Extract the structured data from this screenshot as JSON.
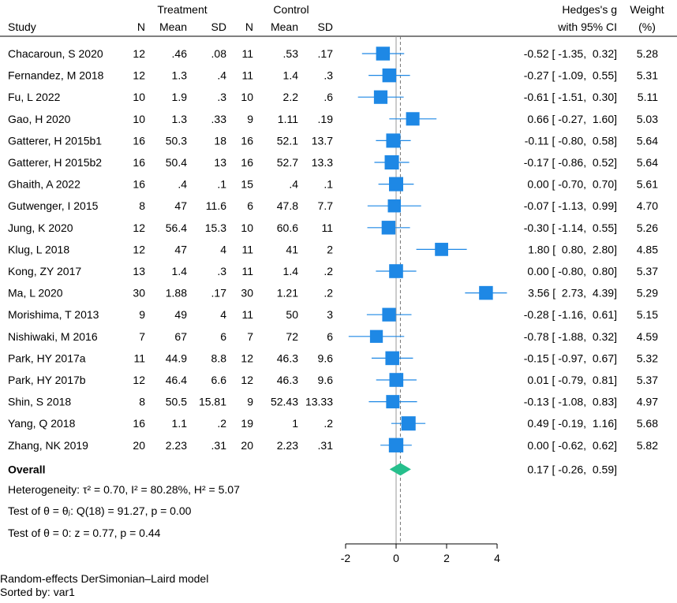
{
  "chart_data": {
    "type": "forest",
    "header": {
      "group_treatment": "Treatment",
      "group_control": "Control",
      "col_study": "Study",
      "col_n": "N",
      "col_mean": "Mean",
      "col_sd": "SD",
      "col_effect_line1": "Hedges's g",
      "col_effect_line2": "with 95% CI",
      "col_weight_line1": "Weight",
      "col_weight_line2": "(%)"
    },
    "studies": [
      {
        "study": "Chacaroun, S 2020",
        "n1": "12",
        "m1": ".46",
        "sd1": ".08",
        "n2": "11",
        "m2": ".53",
        "sd2": ".17",
        "g": -0.52,
        "lo": -1.35,
        "hi": 0.32,
        "ci_text": "-0.52 [ -1.35,  0.32]",
        "weight": "5.28"
      },
      {
        "study": "Fernandez, M 2018",
        "n1": "12",
        "m1": "1.3",
        "sd1": ".4",
        "n2": "11",
        "m2": "1.4",
        "sd2": ".3",
        "g": -0.27,
        "lo": -1.09,
        "hi": 0.55,
        "ci_text": "-0.27 [ -1.09,  0.55]",
        "weight": "5.31"
      },
      {
        "study": "Fu, L 2022",
        "n1": "10",
        "m1": "1.9",
        "sd1": ".3",
        "n2": "10",
        "m2": "2.2",
        "sd2": ".6",
        "g": -0.61,
        "lo": -1.51,
        "hi": 0.3,
        "ci_text": "-0.61 [ -1.51,  0.30]",
        "weight": "5.11"
      },
      {
        "study": "Gao, H 2020",
        "n1": "10",
        "m1": "1.3",
        "sd1": ".33",
        "n2": "9",
        "m2": "1.11",
        "sd2": ".19",
        "g": 0.66,
        "lo": -0.27,
        "hi": 1.6,
        "ci_text": "0.66 [ -0.27,  1.60]",
        "weight": "5.03"
      },
      {
        "study": "Gatterer, H 2015b1",
        "n1": "16",
        "m1": "50.3",
        "sd1": "18",
        "n2": "16",
        "m2": "52.1",
        "sd2": "13.7",
        "g": -0.11,
        "lo": -0.8,
        "hi": 0.58,
        "ci_text": "-0.11 [ -0.80,  0.58]",
        "weight": "5.64"
      },
      {
        "study": "Gatterer, H 2015b2",
        "n1": "16",
        "m1": "50.4",
        "sd1": "13",
        "n2": "16",
        "m2": "52.7",
        "sd2": "13.3",
        "g": -0.17,
        "lo": -0.86,
        "hi": 0.52,
        "ci_text": "-0.17 [ -0.86,  0.52]",
        "weight": "5.64"
      },
      {
        "study": "Ghaith, A 2022",
        "n1": "16",
        "m1": ".4",
        "sd1": ".1",
        "n2": "15",
        "m2": ".4",
        "sd2": ".1",
        "g": 0.0,
        "lo": -0.7,
        "hi": 0.7,
        "ci_text": "0.00 [ -0.70,  0.70]",
        "weight": "5.61"
      },
      {
        "study": "Gutwenger, I 2015",
        "n1": "8",
        "m1": "47",
        "sd1": "11.6",
        "n2": "6",
        "m2": "47.8",
        "sd2": "7.7",
        "g": -0.07,
        "lo": -1.13,
        "hi": 0.99,
        "ci_text": "-0.07 [ -1.13,  0.99]",
        "weight": "4.70"
      },
      {
        "study": "Jung, K 2020",
        "n1": "12",
        "m1": "56.4",
        "sd1": "15.3",
        "n2": "10",
        "m2": "60.6",
        "sd2": "11",
        "g": -0.3,
        "lo": -1.14,
        "hi": 0.55,
        "ci_text": "-0.30 [ -1.14,  0.55]",
        "weight": "5.26"
      },
      {
        "study": "Klug, L 2018",
        "n1": "12",
        "m1": "47",
        "sd1": "4",
        "n2": "11",
        "m2": "41",
        "sd2": "2",
        "g": 1.8,
        "lo": 0.8,
        "hi": 2.8,
        "ci_text": "1.80 [  0.80,  2.80]",
        "weight": "4.85"
      },
      {
        "study": "Kong, ZY 2017",
        "n1": "13",
        "m1": "1.4",
        "sd1": ".3",
        "n2": "11",
        "m2": "1.4",
        "sd2": ".2",
        "g": 0.0,
        "lo": -0.8,
        "hi": 0.8,
        "ci_text": "0.00 [ -0.80,  0.80]",
        "weight": "5.37"
      },
      {
        "study": "Ma, L 2020",
        "n1": "30",
        "m1": "1.88",
        "sd1": ".17",
        "n2": "30",
        "m2": "1.21",
        "sd2": ".2",
        "g": 3.56,
        "lo": 2.73,
        "hi": 4.39,
        "ci_text": "3.56 [  2.73,  4.39]",
        "weight": "5.29"
      },
      {
        "study": "Morishima, T 2013",
        "n1": "9",
        "m1": "49",
        "sd1": "4",
        "n2": "11",
        "m2": "50",
        "sd2": "3",
        "g": -0.28,
        "lo": -1.16,
        "hi": 0.61,
        "ci_text": "-0.28 [ -1.16,  0.61]",
        "weight": "5.15"
      },
      {
        "study": "Nishiwaki, M 2016",
        "n1": "7",
        "m1": "67",
        "sd1": "6",
        "n2": "7",
        "m2": "72",
        "sd2": "6",
        "g": -0.78,
        "lo": -1.88,
        "hi": 0.32,
        "ci_text": "-0.78 [ -1.88,  0.32]",
        "weight": "4.59"
      },
      {
        "study": "Park, HY 2017a",
        "n1": "11",
        "m1": "44.9",
        "sd1": "8.8",
        "n2": "12",
        "m2": "46.3",
        "sd2": "9.6",
        "g": -0.15,
        "lo": -0.97,
        "hi": 0.67,
        "ci_text": "-0.15 [ -0.97,  0.67]",
        "weight": "5.32"
      },
      {
        "study": "Park, HY 2017b",
        "n1": "12",
        "m1": "46.4",
        "sd1": "6.6",
        "n2": "12",
        "m2": "46.3",
        "sd2": "9.6",
        "g": 0.01,
        "lo": -0.79,
        "hi": 0.81,
        "ci_text": "0.01 [ -0.79,  0.81]",
        "weight": "5.37"
      },
      {
        "study": "Shin, S 2018",
        "n1": "8",
        "m1": "50.5",
        "sd1": "15.81",
        "n2": "9",
        "m2": "52.43",
        "sd2": "13.33",
        "g": -0.13,
        "lo": -1.08,
        "hi": 0.83,
        "ci_text": "-0.13 [ -1.08,  0.83]",
        "weight": "4.97"
      },
      {
        "study": "Yang, Q 2018",
        "n1": "16",
        "m1": "1.1",
        "sd1": ".2",
        "n2": "19",
        "m2": "1",
        "sd2": ".2",
        "g": 0.49,
        "lo": -0.19,
        "hi": 1.16,
        "ci_text": "0.49 [ -0.19,  1.16]",
        "weight": "5.68"
      },
      {
        "study": "Zhang, NK 2019",
        "n1": "20",
        "m1": "2.23",
        "sd1": ".31",
        "n2": "20",
        "m2": "2.23",
        "sd2": ".31",
        "g": 0.0,
        "lo": -0.62,
        "hi": 0.62,
        "ci_text": "0.00 [ -0.62,  0.62]",
        "weight": "5.82"
      }
    ],
    "overall": {
      "label": "Overall",
      "g": 0.17,
      "lo": -0.26,
      "hi": 0.59,
      "ci_text": "0.17 [ -0.26,  0.59]"
    },
    "stats": [
      "Heterogeneity: τ² = 0.70, I² = 80.28%, H² = 5.07",
      "Test of θ = θⱼ: Q(18) = 91.27, p = 0.00",
      "Test of θ = 0: z = 0.77, p = 0.44"
    ],
    "x_axis": {
      "min": -2,
      "max": 4,
      "ticks": [
        -2,
        0,
        2,
        4
      ],
      "null_line": 0,
      "overall_line": 0.17
    },
    "colors": {
      "marker": "#1e88e5",
      "ci_line": "#1e88e5",
      "diamond": "#26bf8c",
      "null_line": "#999999",
      "overall_line": "#777777"
    },
    "footnotes": [
      "Random-effects DerSimonian–Laird model",
      "Sorted by: var1"
    ]
  }
}
